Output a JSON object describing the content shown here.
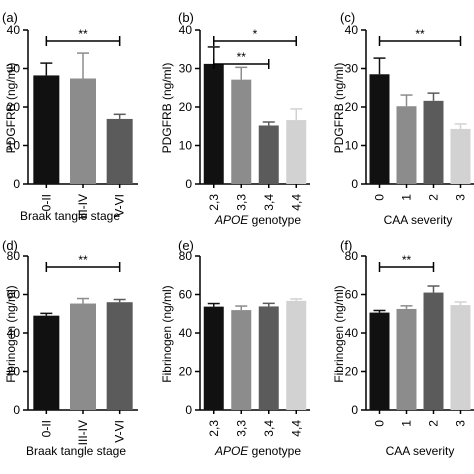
{
  "chart_data": [
    {
      "panel": "(a)",
      "type": "bar",
      "ylabel": "PDGFRB (ng/ml)",
      "xlabel": "Braak tangle stage",
      "categories": [
        "0-II",
        "III-IV",
        "V-VI"
      ],
      "values": [
        28.2,
        27.4,
        16.9
      ],
      "errors": [
        3.2,
        6.6,
        1.2
      ],
      "colors": [
        "#111111",
        "#8c8c8c",
        "#5b5b5b"
      ],
      "ylim": [
        0,
        40
      ],
      "yticks": [
        0,
        10,
        20,
        30,
        40
      ],
      "significance": [
        {
          "from": 0,
          "to": 2,
          "label": "**"
        }
      ]
    },
    {
      "panel": "(b)",
      "type": "bar",
      "ylabel": "PDGFRB (ng/ml)",
      "xlabel": "APOE genotype",
      "categories": [
        "2,3",
        "3,3",
        "3,4",
        "4,4"
      ],
      "values": [
        31.2,
        27.1,
        15.2,
        16.6
      ],
      "errors": [
        4.4,
        3.2,
        0.9,
        2.9
      ],
      "colors": [
        "#111111",
        "#8c8c8c",
        "#5b5b5b",
        "#d2d2d2"
      ],
      "ylim": [
        0,
        40
      ],
      "yticks": [
        0,
        10,
        20,
        30,
        40
      ],
      "significance": [
        {
          "from": 0,
          "to": 3,
          "label": "*"
        },
        {
          "from": 0,
          "to": 2,
          "label": "**"
        }
      ]
    },
    {
      "panel": "(c)",
      "type": "bar",
      "ylabel": "PDGFRB (ng/ml)",
      "xlabel": "CAA severity",
      "categories": [
        "0",
        "1",
        "2",
        "3"
      ],
      "values": [
        28.5,
        20.2,
        21.6,
        14.3
      ],
      "errors": [
        4.2,
        2.9,
        2.0,
        1.3
      ],
      "colors": [
        "#111111",
        "#8c8c8c",
        "#5b5b5b",
        "#d2d2d2"
      ],
      "ylim": [
        0,
        40
      ],
      "yticks": [
        0,
        10,
        20,
        30,
        40
      ],
      "significance": [
        {
          "from": 0,
          "to": 3,
          "label": "**"
        }
      ]
    },
    {
      "panel": "(d)",
      "type": "bar",
      "ylabel": "Fibrinogen (ng/ml)",
      "xlabel": "Braak tangle stage",
      "categories": [
        "0-II",
        "III-IV",
        "V-VI"
      ],
      "values": [
        49.0,
        55.3,
        56.0
      ],
      "errors": [
        1.2,
        2.6,
        1.4
      ],
      "colors": [
        "#111111",
        "#8c8c8c",
        "#5b5b5b"
      ],
      "ylim": [
        0,
        80
      ],
      "yticks": [
        0,
        20,
        40,
        60,
        80
      ],
      "significance": [
        {
          "from": 0,
          "to": 2,
          "label": "**"
        }
      ]
    },
    {
      "panel": "(e)",
      "type": "bar",
      "ylabel": "Fibrinogen (ng/ml)",
      "xlabel": "APOE genotype",
      "categories": [
        "2,3",
        "3,3",
        "3,4",
        "4,4"
      ],
      "values": [
        53.7,
        51.9,
        53.8,
        56.7
      ],
      "errors": [
        1.6,
        2.1,
        1.6,
        1.0
      ],
      "colors": [
        "#111111",
        "#8c8c8c",
        "#5b5b5b",
        "#d2d2d2"
      ],
      "ylim": [
        0,
        80
      ],
      "yticks": [
        0,
        20,
        40,
        60,
        80
      ],
      "significance": []
    },
    {
      "panel": "(f)",
      "type": "bar",
      "ylabel": "Fibrinogen (ng/ml)",
      "xlabel": "CAA severity",
      "categories": [
        "0",
        "1",
        "2",
        "3"
      ],
      "values": [
        50.6,
        52.5,
        61.0,
        54.5
      ],
      "errors": [
        1.1,
        1.6,
        3.4,
        1.6
      ],
      "colors": [
        "#111111",
        "#8c8c8c",
        "#5b5b5b",
        "#d2d2d2"
      ],
      "ylim": [
        0,
        80
      ],
      "yticks": [
        0,
        20,
        40,
        60,
        80
      ],
      "significance": [
        {
          "from": 0,
          "to": 2,
          "label": "**"
        }
      ]
    }
  ]
}
